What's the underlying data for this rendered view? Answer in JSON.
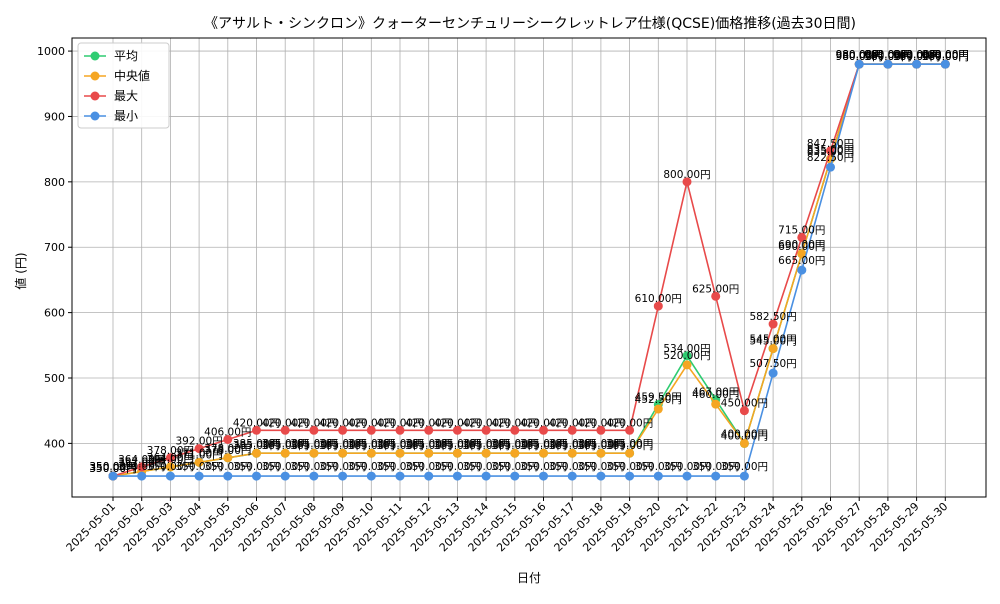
{
  "chart_data": {
    "type": "line",
    "title": "《アサルト・シンクロン》クォーターセンチュリーシークレットレア仕様(QCSE)価格推移(過去30日間)",
    "xlabel": "日付",
    "ylabel": "値 (円)",
    "ylim": [
      318,
      1020
    ],
    "yticks": [
      400,
      500,
      600,
      700,
      800,
      900,
      1000
    ],
    "grid": true,
    "legend_position": "top-left",
    "label_suffix": "円",
    "categories": [
      "2025-05-01",
      "2025-05-02",
      "2025-05-03",
      "2025-05-04",
      "2025-05-05",
      "2025-05-06",
      "2025-05-07",
      "2025-05-08",
      "2025-05-09",
      "2025-05-10",
      "2025-05-11",
      "2025-05-12",
      "2025-05-13",
      "2025-05-14",
      "2025-05-15",
      "2025-05-16",
      "2025-05-17",
      "2025-05-18",
      "2025-05-19",
      "2025-05-20",
      "2025-05-21",
      "2025-05-22",
      "2025-05-23",
      "2025-05-24",
      "2025-05-25",
      "2025-05-26",
      "2025-05-27",
      "2025-05-28",
      "2025-05-29",
      "2025-05-30"
    ],
    "series": [
      {
        "name": "平均",
        "color": "#2ecc71",
        "values": [
          350,
          357,
          364,
          371,
          378,
          385,
          385,
          385,
          385,
          385,
          385,
          385,
          385,
          385,
          385,
          385,
          385,
          385,
          385,
          459.5,
          534,
          467,
          400,
          545,
          690,
          835,
          980,
          980,
          980,
          980
        ]
      },
      {
        "name": "中央値",
        "color": "#f5a623",
        "values": [
          350,
          357,
          364,
          371,
          378,
          385,
          385,
          385,
          385,
          385,
          385,
          385,
          385,
          385,
          385,
          385,
          385,
          385,
          385,
          452.5,
          520,
          460,
          400,
          545,
          690,
          835,
          980,
          980,
          980,
          980
        ]
      },
      {
        "name": "最大",
        "color": "#e84a4a",
        "values": [
          350,
          364,
          378,
          392,
          406,
          420,
          420,
          420,
          420,
          420,
          420,
          420,
          420,
          420,
          420,
          420,
          420,
          420,
          420,
          610,
          800,
          625,
          450,
          582.5,
          715,
          847.5,
          980,
          980,
          980,
          980
        ]
      },
      {
        "name": "最小",
        "color": "#4a90e2",
        "values": [
          350,
          350,
          350,
          350,
          350,
          350,
          350,
          350,
          350,
          350,
          350,
          350,
          350,
          350,
          350,
          350,
          350,
          350,
          350,
          350,
          350,
          350,
          350,
          507.5,
          665,
          822.5,
          980,
          980,
          980,
          980
        ]
      }
    ]
  }
}
